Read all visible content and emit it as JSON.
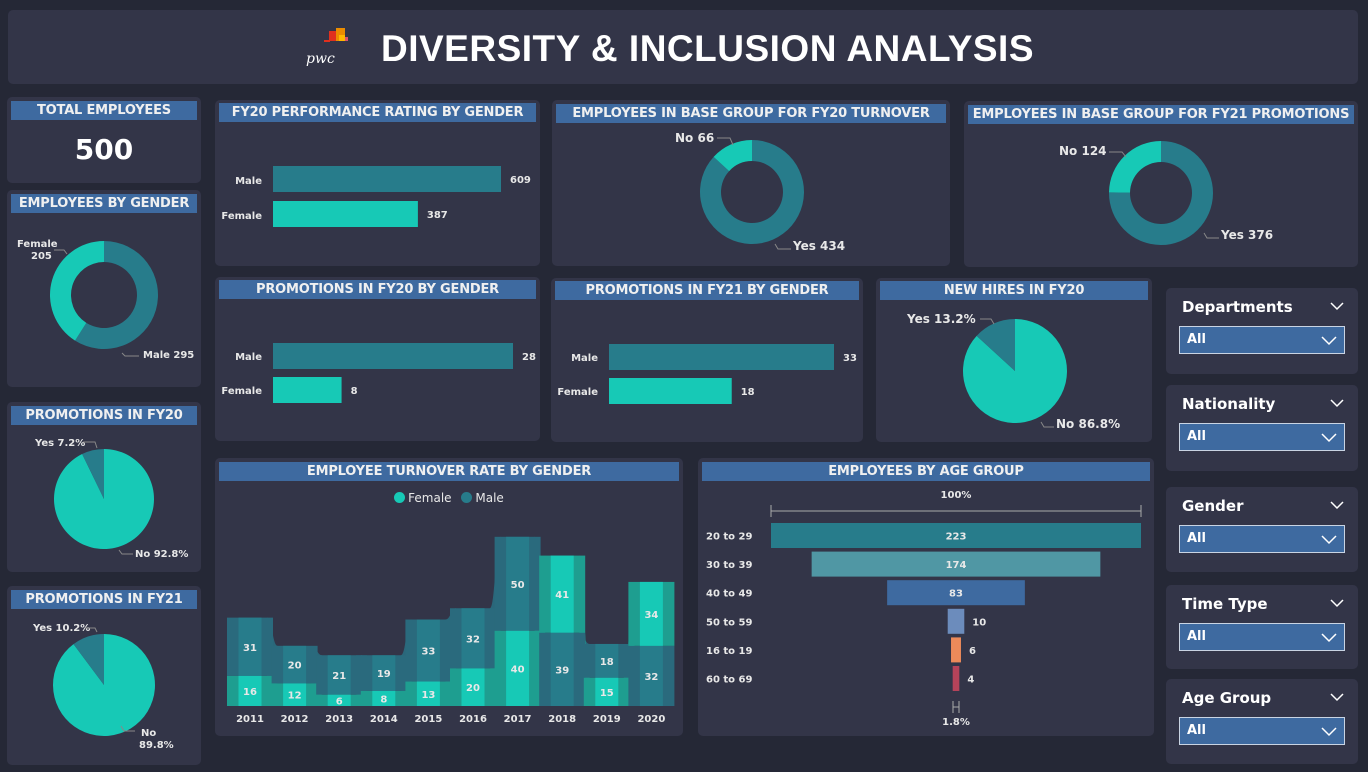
{
  "header": {
    "title": "DIVERSITY & INCLUSION ANALYSIS",
    "logo_text": "pwc"
  },
  "colors": {
    "female": "#17c9b6",
    "male": "#277c8b",
    "title_bar": "#3e6aa0",
    "panel": "#333548",
    "background": "#252836"
  },
  "total_employees": {
    "title": "TOTAL EMPLOYEES",
    "value": "500"
  },
  "employees_by_gender": {
    "title": "EMPLOYEES BY GENDER",
    "female_label": "Female",
    "female_value": "205",
    "male_label": "Male 295"
  },
  "promotions_fy20": {
    "title": "PROMOTIONS IN FY20",
    "yes_label": "Yes 7.2%",
    "no_label": "No 92.8%"
  },
  "promotions_fy21": {
    "title": "PROMOTIONS IN FY21",
    "yes_label": "Yes 10.2%",
    "no_label_1": "No",
    "no_label_2": "89.8%"
  },
  "perf_rating": {
    "title": "FY20 PERFORMANCE RATING BY GENDER",
    "male_label": "Male",
    "female_label": "Female",
    "male_value": "609",
    "female_value": "387"
  },
  "base_turnover": {
    "title": "EMPLOYEES IN BASE GROUP FOR FY20 TURNOVER",
    "no_label": "No 66",
    "yes_label": "Yes 434"
  },
  "base_promotions": {
    "title": "EMPLOYEES IN BASE GROUP FOR FY21 PROMOTIONS",
    "no_label": "No 124",
    "yes_label": "Yes 376"
  },
  "promo_fy20_gender": {
    "title": "PROMOTIONS IN FY20 BY GENDER",
    "male_label": "Male",
    "female_label": "Female",
    "male_value": "28",
    "female_value": "8"
  },
  "promo_fy21_gender": {
    "title": "PROMOTIONS IN FY21 BY GENDER",
    "male_label": "Male",
    "female_label": "Female",
    "male_value": "33",
    "female_value": "18"
  },
  "new_hires": {
    "title": "NEW HIRES IN FY20",
    "yes_label": "Yes 13.2%",
    "no_label": "No 86.8%"
  },
  "turnover": {
    "title": "EMPLOYEE TURNOVER RATE BY GENDER",
    "legend_female": "Female",
    "legend_male": "Male"
  },
  "age_group": {
    "title": "EMPLOYEES BY AGE GROUP",
    "top_pct": "100%",
    "bottom_pct": "1.8%"
  },
  "slicers": [
    {
      "label": "Departments",
      "value": "All"
    },
    {
      "label": "Nationality",
      "value": "All"
    },
    {
      "label": "Gender",
      "value": "All"
    },
    {
      "label": "Time Type",
      "value": "All"
    },
    {
      "label": "Age Group",
      "value": "All"
    }
  ],
  "chart_data": [
    {
      "id": "employees_by_gender",
      "type": "pie",
      "title": "EMPLOYEES BY GENDER",
      "donut": true,
      "categories": [
        "Female",
        "Male"
      ],
      "values": [
        205,
        295
      ]
    },
    {
      "id": "promotions_fy20",
      "type": "pie",
      "title": "PROMOTIONS IN FY20",
      "categories": [
        "Yes",
        "No"
      ],
      "values": [
        7.2,
        92.8
      ],
      "unit": "%"
    },
    {
      "id": "promotions_fy21",
      "type": "pie",
      "title": "PROMOTIONS IN FY21",
      "categories": [
        "Yes",
        "No"
      ],
      "values": [
        10.2,
        89.8
      ],
      "unit": "%"
    },
    {
      "id": "perf_rating",
      "type": "bar",
      "orientation": "horizontal",
      "title": "FY20 PERFORMANCE RATING BY GENDER",
      "categories": [
        "Male",
        "Female"
      ],
      "values": [
        609,
        387
      ]
    },
    {
      "id": "base_turnover",
      "type": "pie",
      "donut": true,
      "title": "EMPLOYEES IN BASE GROUP FOR FY20 TURNOVER",
      "categories": [
        "No",
        "Yes"
      ],
      "values": [
        66,
        434
      ]
    },
    {
      "id": "base_promotions",
      "type": "pie",
      "donut": true,
      "title": "EMPLOYEES IN BASE GROUP FOR FY21 PROMOTIONS",
      "categories": [
        "No",
        "Yes"
      ],
      "values": [
        124,
        376
      ]
    },
    {
      "id": "promo_fy20_gender",
      "type": "bar",
      "orientation": "horizontal",
      "title": "PROMOTIONS IN FY20 BY GENDER",
      "categories": [
        "Male",
        "Female"
      ],
      "values": [
        28,
        8
      ]
    },
    {
      "id": "promo_fy21_gender",
      "type": "bar",
      "orientation": "horizontal",
      "title": "PROMOTIONS IN FY21 BY GENDER",
      "categories": [
        "Male",
        "Female"
      ],
      "values": [
        33,
        18
      ]
    },
    {
      "id": "new_hires",
      "type": "pie",
      "title": "NEW HIRES IN FY20",
      "categories": [
        "Yes",
        "No"
      ],
      "values": [
        13.2,
        86.8
      ],
      "unit": "%"
    },
    {
      "id": "turnover",
      "type": "area",
      "subtype": "ribbon",
      "title": "EMPLOYEE TURNOVER RATE BY GENDER",
      "legend": "top-center",
      "x": [
        "2011",
        "2012",
        "2013",
        "2014",
        "2015",
        "2016",
        "2017",
        "2018",
        "2019",
        "2020"
      ],
      "series": [
        {
          "name": "Female",
          "values": [
            16,
            12,
            6,
            8,
            13,
            20,
            40,
            41,
            15,
            34
          ]
        },
        {
          "name": "Male",
          "values": [
            31,
            20,
            21,
            19,
            33,
            32,
            50,
            39,
            18,
            32
          ]
        }
      ]
    },
    {
      "id": "age_group",
      "type": "bar",
      "subtype": "funnel",
      "title": "EMPLOYEES BY AGE GROUP",
      "categories": [
        "20 to 29",
        "30 to 39",
        "40 to 49",
        "50 to 59",
        "16 to 19",
        "60 to 69"
      ],
      "values": [
        223,
        174,
        83,
        10,
        6,
        4
      ],
      "colors": [
        "#277c8b",
        "#5097a4",
        "#3e6aa0",
        "#6c8cbc",
        "#ec8a5a",
        "#b5435a"
      ],
      "top_label": "100%",
      "bottom_label": "1.8%"
    }
  ]
}
